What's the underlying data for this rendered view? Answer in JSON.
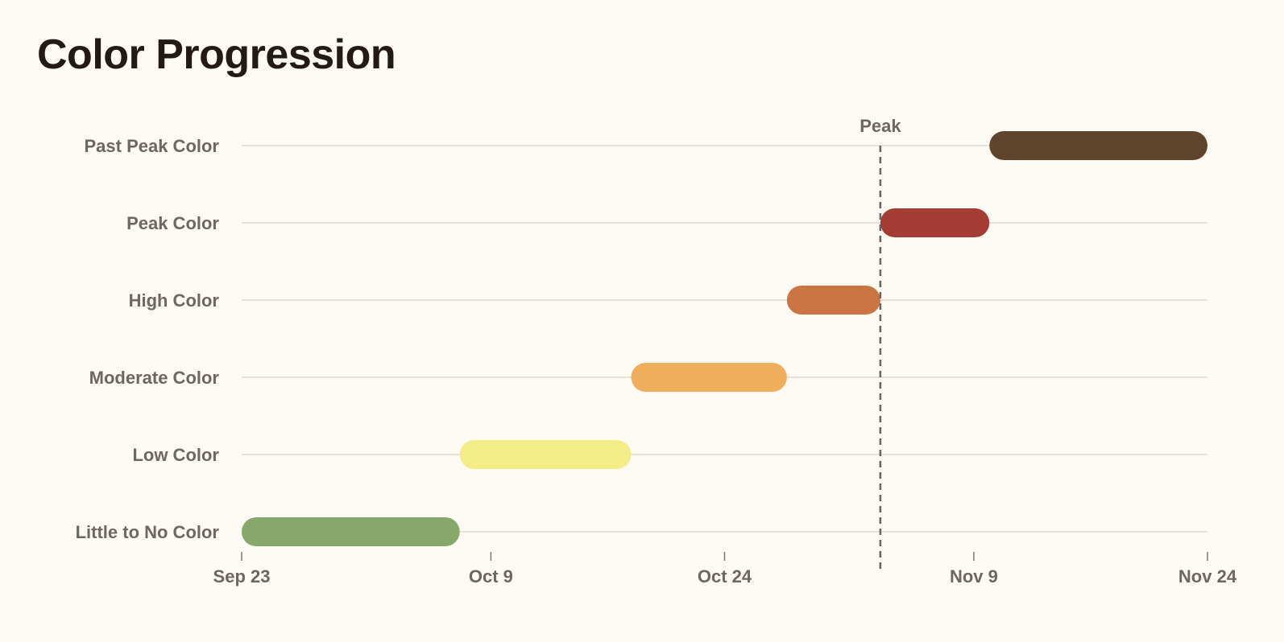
{
  "page": {
    "title": "Color Progression"
  },
  "chart_data": {
    "type": "bar",
    "orientation": "horizontal",
    "subtype": "timeline-range",
    "title": "Color Progression",
    "xlabel": "",
    "ylabel": "",
    "x_axis": {
      "type": "date",
      "range": [
        "2024-09-23",
        "2024-11-24"
      ],
      "ticks": [
        {
          "date": "2024-09-23",
          "label": "Sep 23"
        },
        {
          "date": "2024-10-09",
          "label": "Oct 9"
        },
        {
          "date": "2024-10-24",
          "label": "Oct 24"
        },
        {
          "date": "2024-11-09",
          "label": "Nov 9"
        },
        {
          "date": "2024-11-24",
          "label": "Nov 24"
        }
      ]
    },
    "grid": "horizontal",
    "legend": "none",
    "categories": [
      "Little to No Color",
      "Low Color",
      "Moderate Color",
      "High Color",
      "Peak Color",
      "Past Peak Color"
    ],
    "ranges": [
      {
        "category": "Little to No Color",
        "start": "2024-09-23",
        "end": "2024-10-07",
        "color": "#86a86a"
      },
      {
        "category": "Low Color",
        "start": "2024-10-07",
        "end": "2024-10-18",
        "color": "#f3ec87"
      },
      {
        "category": "Moderate Color",
        "start": "2024-10-18",
        "end": "2024-10-28",
        "color": "#efae5c"
      },
      {
        "category": "High Color",
        "start": "2024-10-28",
        "end": "2024-11-03",
        "color": "#cc7544"
      },
      {
        "category": "Peak Color",
        "start": "2024-11-03",
        "end": "2024-11-10",
        "color": "#a43b35"
      },
      {
        "category": "Past Peak Color",
        "start": "2024-11-10",
        "end": "2024-11-24",
        "color": "#5e442d"
      }
    ],
    "annotations": [
      {
        "type": "vline",
        "date": "2024-11-03",
        "label": "Peak",
        "style": "dashed"
      }
    ],
    "colors": {
      "grid": "#dedad2",
      "axis": "#777777",
      "text": "#6e6660",
      "annotation": "#666666"
    }
  }
}
